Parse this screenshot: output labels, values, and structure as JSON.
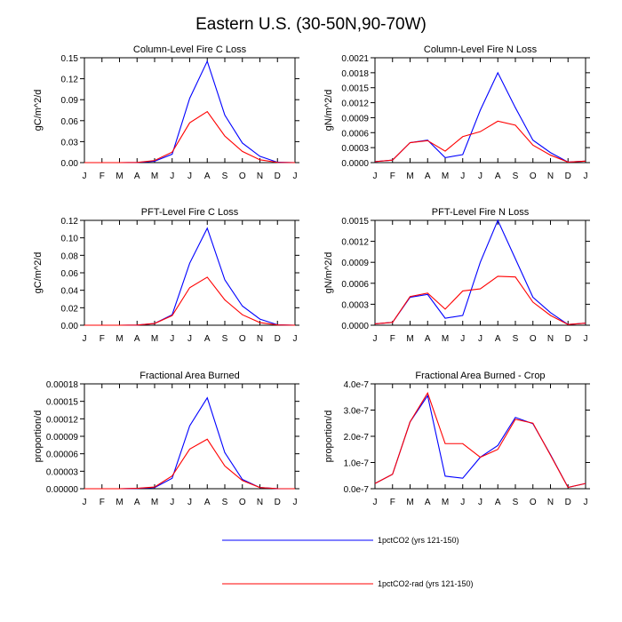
{
  "page": {
    "title": "Eastern U.S. (30-50N,90-70W)"
  },
  "series_styles": [
    {
      "color": "#0000ff"
    },
    {
      "color": "#ff0000"
    }
  ],
  "legend": {
    "placement": "bottom-center",
    "entries": [
      {
        "label": "1pctCO2 (yrs 121-150)",
        "color": "#0000ff"
      },
      {
        "label": "1pctCO2-rad (yrs 121-150)",
        "color": "#ff0000"
      }
    ]
  },
  "chart_data": [
    {
      "type": "line",
      "title": "Column-Level Fire C Loss",
      "ylabel": "gC/m^2/d",
      "categories": [
        "J",
        "F",
        "M",
        "A",
        "M",
        "J",
        "J",
        "A",
        "S",
        "O",
        "N",
        "D",
        "J"
      ],
      "ylim": [
        0,
        0.15
      ],
      "yticks": [
        "0.00",
        "0.03",
        "0.06",
        "0.09",
        "0.12",
        "0.15"
      ],
      "series": [
        {
          "values": [
            0.0,
            0.0,
            0.0,
            0.0002,
            0.002,
            0.012,
            0.092,
            0.145,
            0.068,
            0.028,
            0.009,
            0.0005,
            0.0
          ]
        },
        {
          "values": [
            0.0,
            0.0,
            0.0,
            0.0002,
            0.003,
            0.015,
            0.057,
            0.073,
            0.038,
            0.016,
            0.004,
            0.0003,
            0.0
          ]
        }
      ]
    },
    {
      "type": "line",
      "title": "Column-Level Fire N Loss",
      "ylabel": "gN/m^2/d",
      "categories": [
        "J",
        "F",
        "M",
        "A",
        "M",
        "J",
        "J",
        "A",
        "S",
        "O",
        "N",
        "D",
        "J"
      ],
      "ylim": [
        0,
        0.0021
      ],
      "yticks": [
        "0.0000",
        "0.0003",
        "0.0006",
        "0.0009",
        "0.0012",
        "0.0015",
        "0.0018",
        "0.0021"
      ],
      "series": [
        {
          "values": [
            2e-05,
            5e-05,
            0.0004,
            0.00045,
            0.0001,
            0.00016,
            0.00105,
            0.0018,
            0.0011,
            0.00045,
            0.0002,
            1e-05,
            3e-05
          ]
        },
        {
          "values": [
            2e-05,
            5e-05,
            0.0004,
            0.00044,
            0.00023,
            0.00052,
            0.00062,
            0.00083,
            0.00075,
            0.00035,
            0.00015,
            1e-05,
            3e-05
          ]
        }
      ]
    },
    {
      "type": "line",
      "title": "PFT-Level Fire C Loss",
      "ylabel": "gC/m^2/d",
      "categories": [
        "J",
        "F",
        "M",
        "A",
        "M",
        "J",
        "J",
        "A",
        "S",
        "O",
        "N",
        "D",
        "J"
      ],
      "ylim": [
        0,
        0.12
      ],
      "yticks": [
        "0.00",
        "0.02",
        "0.04",
        "0.06",
        "0.08",
        "0.10",
        "0.12"
      ],
      "series": [
        {
          "values": [
            0.0,
            0.0,
            0.0,
            0.0002,
            0.002,
            0.012,
            0.071,
            0.111,
            0.052,
            0.022,
            0.007,
            0.0005,
            0.0
          ]
        },
        {
          "values": [
            0.0,
            0.0,
            0.0,
            0.0002,
            0.002,
            0.011,
            0.043,
            0.055,
            0.029,
            0.012,
            0.003,
            0.0003,
            0.0
          ]
        }
      ]
    },
    {
      "type": "line",
      "title": "PFT-Level Fire N Loss",
      "ylabel": "gN/m^2/d",
      "categories": [
        "J",
        "F",
        "M",
        "A",
        "M",
        "J",
        "J",
        "A",
        "S",
        "O",
        "N",
        "D",
        "J"
      ],
      "ylim": [
        0,
        0.0015
      ],
      "yticks": [
        "0.0000",
        "0.0003",
        "0.0006",
        "0.0009",
        "0.0012",
        "0.0015"
      ],
      "series": [
        {
          "values": [
            2e-05,
            4e-05,
            0.0004,
            0.00044,
            0.0001,
            0.00014,
            0.0009,
            0.0015,
            0.00095,
            0.0004,
            0.00018,
            1e-05,
            3e-05
          ]
        },
        {
          "values": [
            2e-05,
            4e-05,
            0.00041,
            0.00046,
            0.00023,
            0.00049,
            0.00052,
            0.0007,
            0.00069,
            0.00033,
            0.00014,
            1e-05,
            3e-05
          ]
        }
      ]
    },
    {
      "type": "line",
      "title": "Fractional Area Burned",
      "ylabel": "proportion/d",
      "categories": [
        "J",
        "F",
        "M",
        "A",
        "M",
        "J",
        "J",
        "A",
        "S",
        "O",
        "N",
        "D",
        "J"
      ],
      "ylim": [
        0,
        0.00018
      ],
      "yticks": [
        "0.00000",
        "0.00003",
        "0.00006",
        "0.00009",
        "0.00012",
        "0.00015",
        "0.00018"
      ],
      "series": [
        {
          "values": [
            0.0,
            0.0,
            0.0,
            5e-07,
            2e-06,
            1.8e-05,
            0.000108,
            0.000156,
            6.2e-05,
            1.6e-05,
            2e-06,
            2e-07,
            0.0
          ]
        },
        {
          "values": [
            0.0,
            0.0,
            0.0,
            7e-07,
            3e-06,
            2.2e-05,
            6.8e-05,
            8.5e-05,
            3.9e-05,
            1.4e-05,
            2e-06,
            2e-07,
            0.0
          ]
        }
      ]
    },
    {
      "type": "line",
      "title": "Fractional Area Burned - Crop",
      "ylabel": "proportion/d",
      "categories": [
        "J",
        "F",
        "M",
        "A",
        "M",
        "J",
        "J",
        "A",
        "S",
        "O",
        "N",
        "D",
        "J"
      ],
      "ylim": [
        0,
        4e-07
      ],
      "yticks": [
        "0.0e-7",
        "1.0e-7",
        "2.0e-7",
        "3.0e-7",
        "4.0e-7"
      ],
      "series": [
        {
          "values": [
            2e-08,
            5.5e-08,
            2.55e-07,
            3.55e-07,
            4.8e-08,
            4e-08,
            1.2e-07,
            1.65e-07,
            2.72e-07,
            2.48e-07,
            1.3e-07,
            5e-09,
            2e-08
          ]
        },
        {
          "values": [
            2e-08,
            5.5e-08,
            2.55e-07,
            3.65e-07,
            1.72e-07,
            1.72e-07,
            1.2e-07,
            1.5e-07,
            2.65e-07,
            2.5e-07,
            1.28e-07,
            5e-09,
            2e-08
          ]
        }
      ]
    }
  ]
}
